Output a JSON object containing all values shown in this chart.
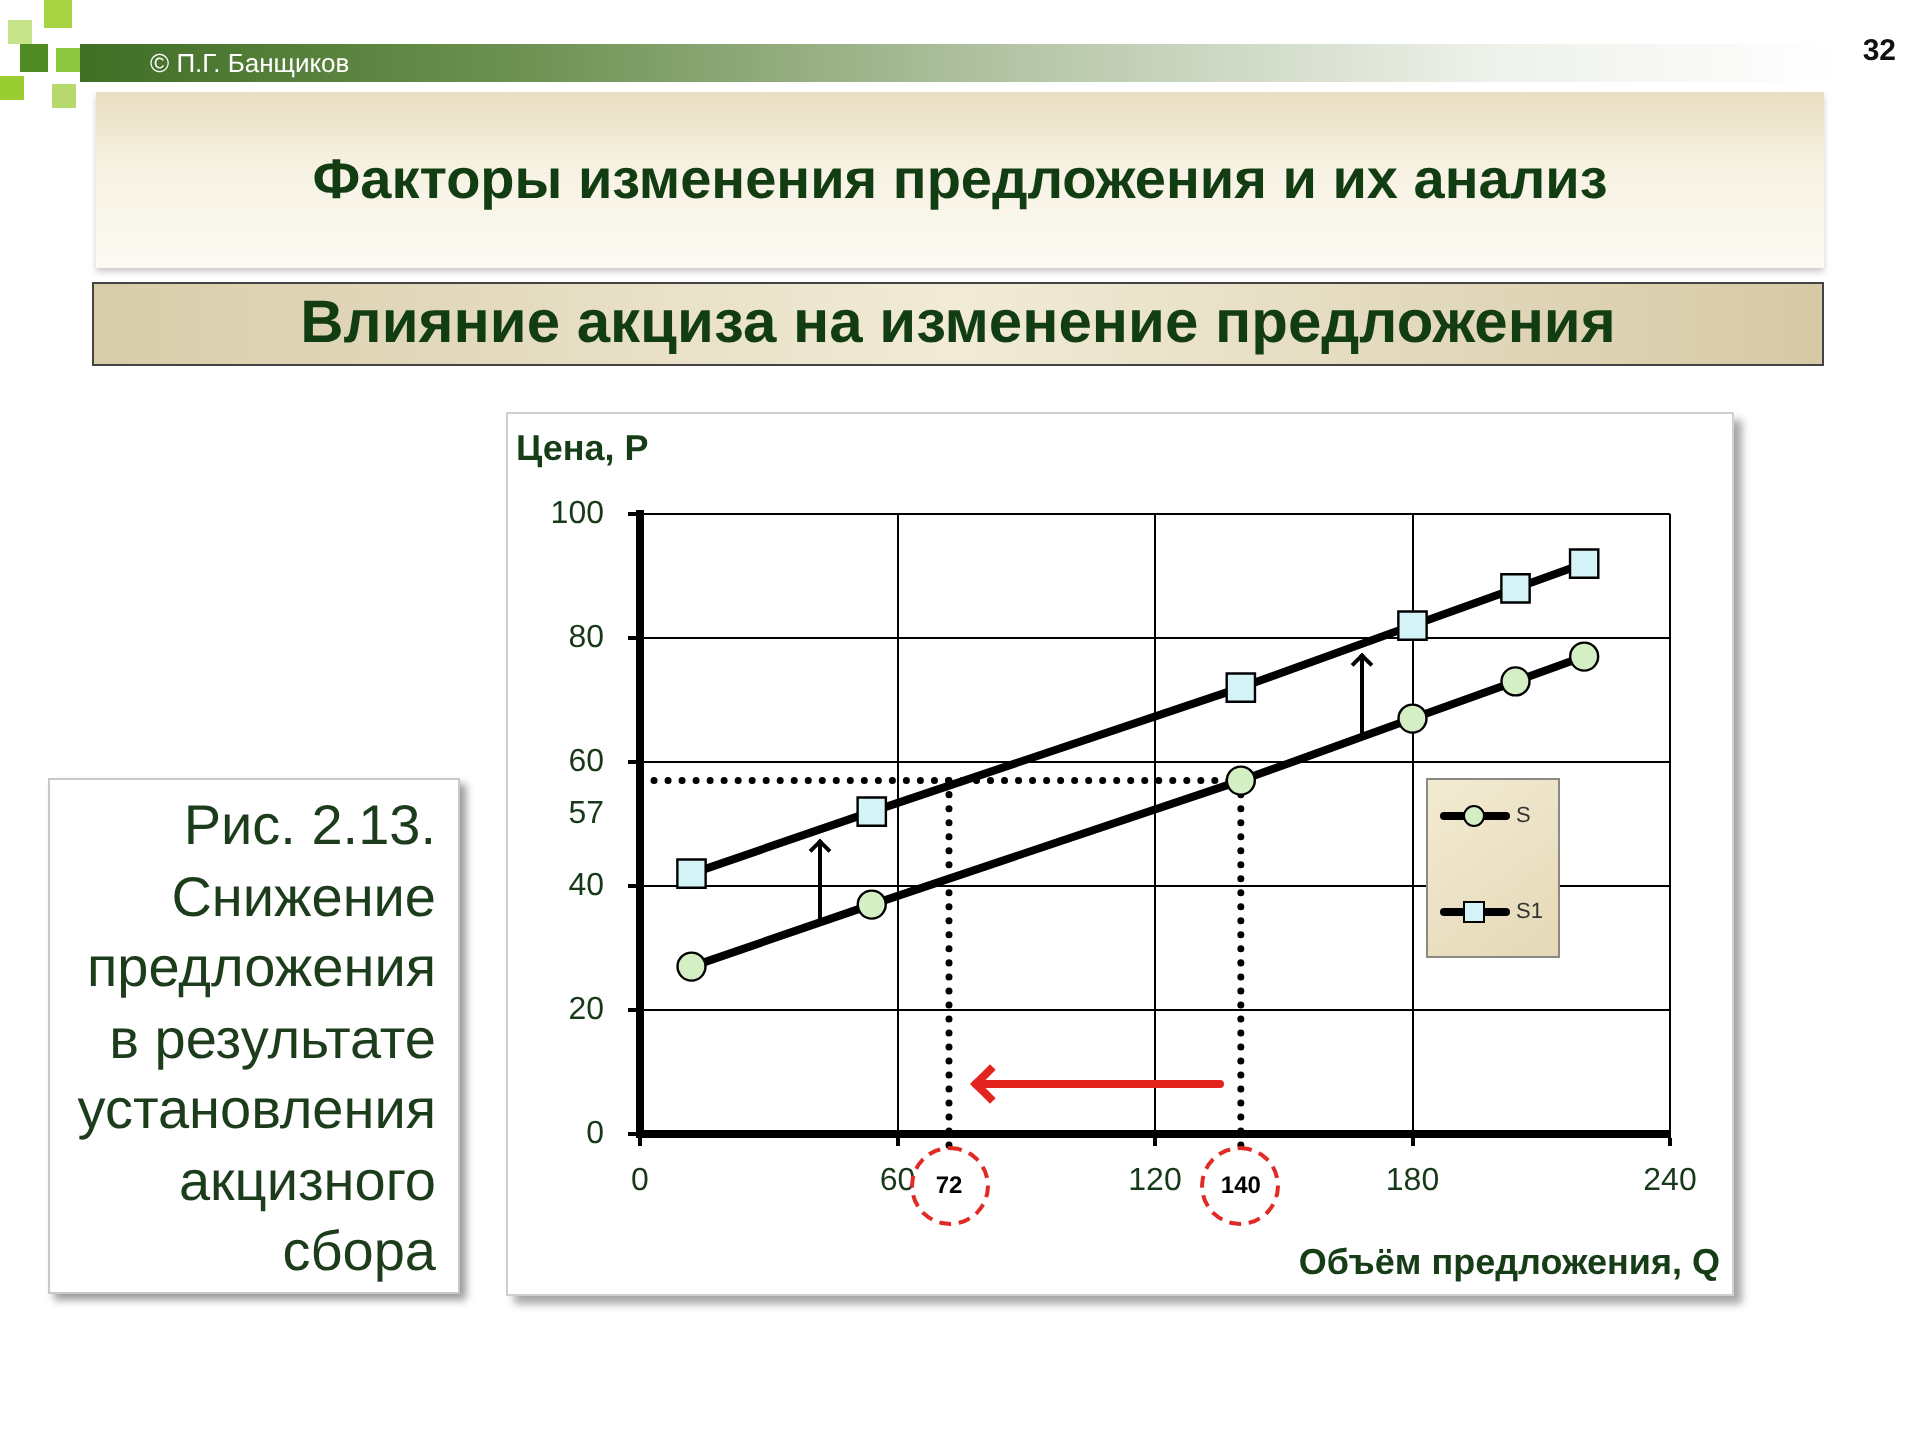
{
  "chart_data": {
    "type": "line",
    "title": "Факторы изменения предложения и их анализ",
    "subtitle": "Влияние акциза на изменение предложения",
    "xlabel": "Объём предложения, Q",
    "ylabel": "Цена, P",
    "x": [
      12,
      54,
      140,
      180,
      204,
      220
    ],
    "series": [
      {
        "name": "S",
        "color": "#000000",
        "colors": [
          "#d5efc5",
          "#d5efc5",
          "#d5efc5",
          "#d5efc5",
          "#d5efc5",
          "#d5efc5"
        ],
        "marker": "circle",
        "values": [
          27,
          37,
          57,
          67,
          73,
          77
        ]
      },
      {
        "name": "S1",
        "color": "#000000",
        "colors": [
          "#d3f3f6",
          "#d3f3f6",
          "#d3f3f6",
          "#d3f3f6",
          "#d3f3f6",
          "#d3f3f6"
        ],
        "marker": "square",
        "values": [
          42,
          52,
          72,
          82,
          88,
          92
        ]
      }
    ],
    "xlim": [
      0,
      240
    ],
    "xticks": [
      0,
      60,
      120,
      180,
      240
    ],
    "ylim": [
      0,
      100
    ],
    "yticks": [
      0,
      20,
      40,
      60,
      80,
      100
    ],
    "ref_lines": [
      {
        "axis": "y",
        "value": 57,
        "label": "57",
        "line_style": "dotted",
        "color": "#000000"
      },
      {
        "axis": "x",
        "value": 72,
        "label": "72",
        "line_style": "dotted",
        "color": "#000000"
      },
      {
        "axis": "x",
        "value": 140,
        "label": "140",
        "line_style": "dotted",
        "color": "#000000"
      }
    ],
    "annotations": [
      "© П.Г. Банщиков",
      "32",
      "Рис. 2.13. Снижение предложения в результате установления акцизного сбора"
    ],
    "grid": true,
    "legend": "right"
  }
}
